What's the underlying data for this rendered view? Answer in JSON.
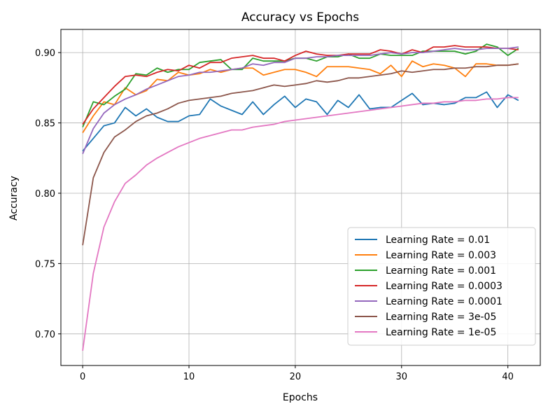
{
  "chart_data": {
    "type": "line",
    "title": "Accuracy vs Epochs",
    "xlabel": "Epochs",
    "ylabel": "Accuracy",
    "xlim": [
      -2.05,
      43.05
    ],
    "ylim": [
      0.6775,
      0.9165
    ],
    "xticks": [
      0,
      10,
      20,
      30,
      40
    ],
    "yticks": [
      0.7,
      0.75,
      0.8,
      0.85,
      0.9
    ],
    "xtick_labels": [
      "0",
      "10",
      "20",
      "30",
      "40"
    ],
    "ytick_labels": [
      "0.70",
      "0.75",
      "0.80",
      "0.85",
      "0.90"
    ],
    "grid": true,
    "legend_position": "lower-right",
    "x": [
      0,
      1,
      2,
      3,
      4,
      5,
      6,
      7,
      8,
      9,
      10,
      11,
      12,
      13,
      14,
      15,
      16,
      17,
      18,
      19,
      20,
      21,
      22,
      23,
      24,
      25,
      26,
      27,
      28,
      29,
      30,
      31,
      32,
      33,
      34,
      35,
      36,
      37,
      38,
      39,
      40,
      41
    ],
    "series": [
      {
        "name": "Learning Rate = 0.01",
        "color": "#1f77b4",
        "values": [
          0.83,
          0.839,
          0.848,
          0.85,
          0.861,
          0.855,
          0.86,
          0.854,
          0.851,
          0.851,
          0.855,
          0.856,
          0.867,
          0.862,
          0.859,
          0.856,
          0.865,
          0.856,
          0.863,
          0.869,
          0.861,
          0.867,
          0.865,
          0.856,
          0.866,
          0.861,
          0.87,
          0.86,
          0.861,
          0.861,
          0.866,
          0.871,
          0.863,
          0.864,
          0.863,
          0.864,
          0.868,
          0.868,
          0.872,
          0.861,
          0.87,
          0.866
        ]
      },
      {
        "name": "Learning Rate = 0.003",
        "color": "#ff7f0e",
        "values": [
          0.843,
          0.855,
          0.865,
          0.863,
          0.875,
          0.87,
          0.873,
          0.881,
          0.88,
          0.886,
          0.884,
          0.885,
          0.888,
          0.886,
          0.888,
          0.889,
          0.889,
          0.884,
          0.886,
          0.888,
          0.888,
          0.886,
          0.883,
          0.89,
          0.89,
          0.89,
          0.889,
          0.888,
          0.885,
          0.891,
          0.883,
          0.894,
          0.89,
          0.892,
          0.891,
          0.889,
          0.883,
          0.892,
          0.892,
          0.891,
          0.891,
          0.892
        ]
      },
      {
        "name": "Learning Rate = 0.001",
        "color": "#2ca02c",
        "values": [
          0.847,
          0.865,
          0.863,
          0.869,
          0.874,
          0.885,
          0.884,
          0.889,
          0.886,
          0.888,
          0.888,
          0.893,
          0.894,
          0.895,
          0.888,
          0.888,
          0.896,
          0.894,
          0.894,
          0.894,
          0.896,
          0.896,
          0.894,
          0.897,
          0.897,
          0.899,
          0.896,
          0.896,
          0.899,
          0.898,
          0.898,
          0.898,
          0.901,
          0.901,
          0.901,
          0.901,
          0.899,
          0.901,
          0.906,
          0.904,
          0.898,
          0.903
        ]
      },
      {
        "name": "Learning Rate = 0.0003",
        "color": "#d62728",
        "values": [
          0.849,
          0.86,
          0.868,
          0.876,
          0.883,
          0.884,
          0.883,
          0.886,
          0.888,
          0.887,
          0.891,
          0.889,
          0.893,
          0.893,
          0.896,
          0.897,
          0.898,
          0.896,
          0.896,
          0.894,
          0.898,
          0.901,
          0.899,
          0.898,
          0.898,
          0.899,
          0.899,
          0.899,
          0.902,
          0.901,
          0.899,
          0.902,
          0.9,
          0.904,
          0.904,
          0.905,
          0.904,
          0.904,
          0.904,
          0.903,
          0.903,
          0.902
        ]
      },
      {
        "name": "Learning Rate = 0.0001",
        "color": "#9467bd",
        "values": [
          0.828,
          0.846,
          0.857,
          0.863,
          0.867,
          0.87,
          0.874,
          0.877,
          0.88,
          0.883,
          0.884,
          0.886,
          0.886,
          0.887,
          0.888,
          0.889,
          0.892,
          0.891,
          0.893,
          0.893,
          0.896,
          0.896,
          0.897,
          0.897,
          0.898,
          0.898,
          0.898,
          0.898,
          0.899,
          0.9,
          0.899,
          0.9,
          0.9,
          0.901,
          0.902,
          0.903,
          0.902,
          0.902,
          0.903,
          0.903,
          0.903,
          0.904
        ]
      },
      {
        "name": "Learning Rate = 3e-05",
        "color": "#8c564b",
        "values": [
          0.763,
          0.811,
          0.829,
          0.84,
          0.845,
          0.851,
          0.855,
          0.857,
          0.86,
          0.864,
          0.866,
          0.867,
          0.868,
          0.869,
          0.871,
          0.872,
          0.873,
          0.875,
          0.877,
          0.876,
          0.877,
          0.878,
          0.88,
          0.879,
          0.88,
          0.882,
          0.882,
          0.883,
          0.884,
          0.885,
          0.887,
          0.886,
          0.887,
          0.888,
          0.888,
          0.889,
          0.889,
          0.89,
          0.89,
          0.891,
          0.891,
          0.892
        ]
      },
      {
        "name": "Learning Rate = 1e-05",
        "color": "#e377c2",
        "values": [
          0.688,
          0.743,
          0.776,
          0.794,
          0.807,
          0.813,
          0.82,
          0.825,
          0.829,
          0.833,
          0.836,
          0.839,
          0.841,
          0.843,
          0.845,
          0.845,
          0.847,
          0.848,
          0.849,
          0.851,
          0.852,
          0.853,
          0.854,
          0.855,
          0.856,
          0.857,
          0.858,
          0.859,
          0.86,
          0.861,
          0.862,
          0.863,
          0.864,
          0.864,
          0.865,
          0.865,
          0.866,
          0.866,
          0.867,
          0.867,
          0.868,
          0.868
        ]
      }
    ]
  }
}
